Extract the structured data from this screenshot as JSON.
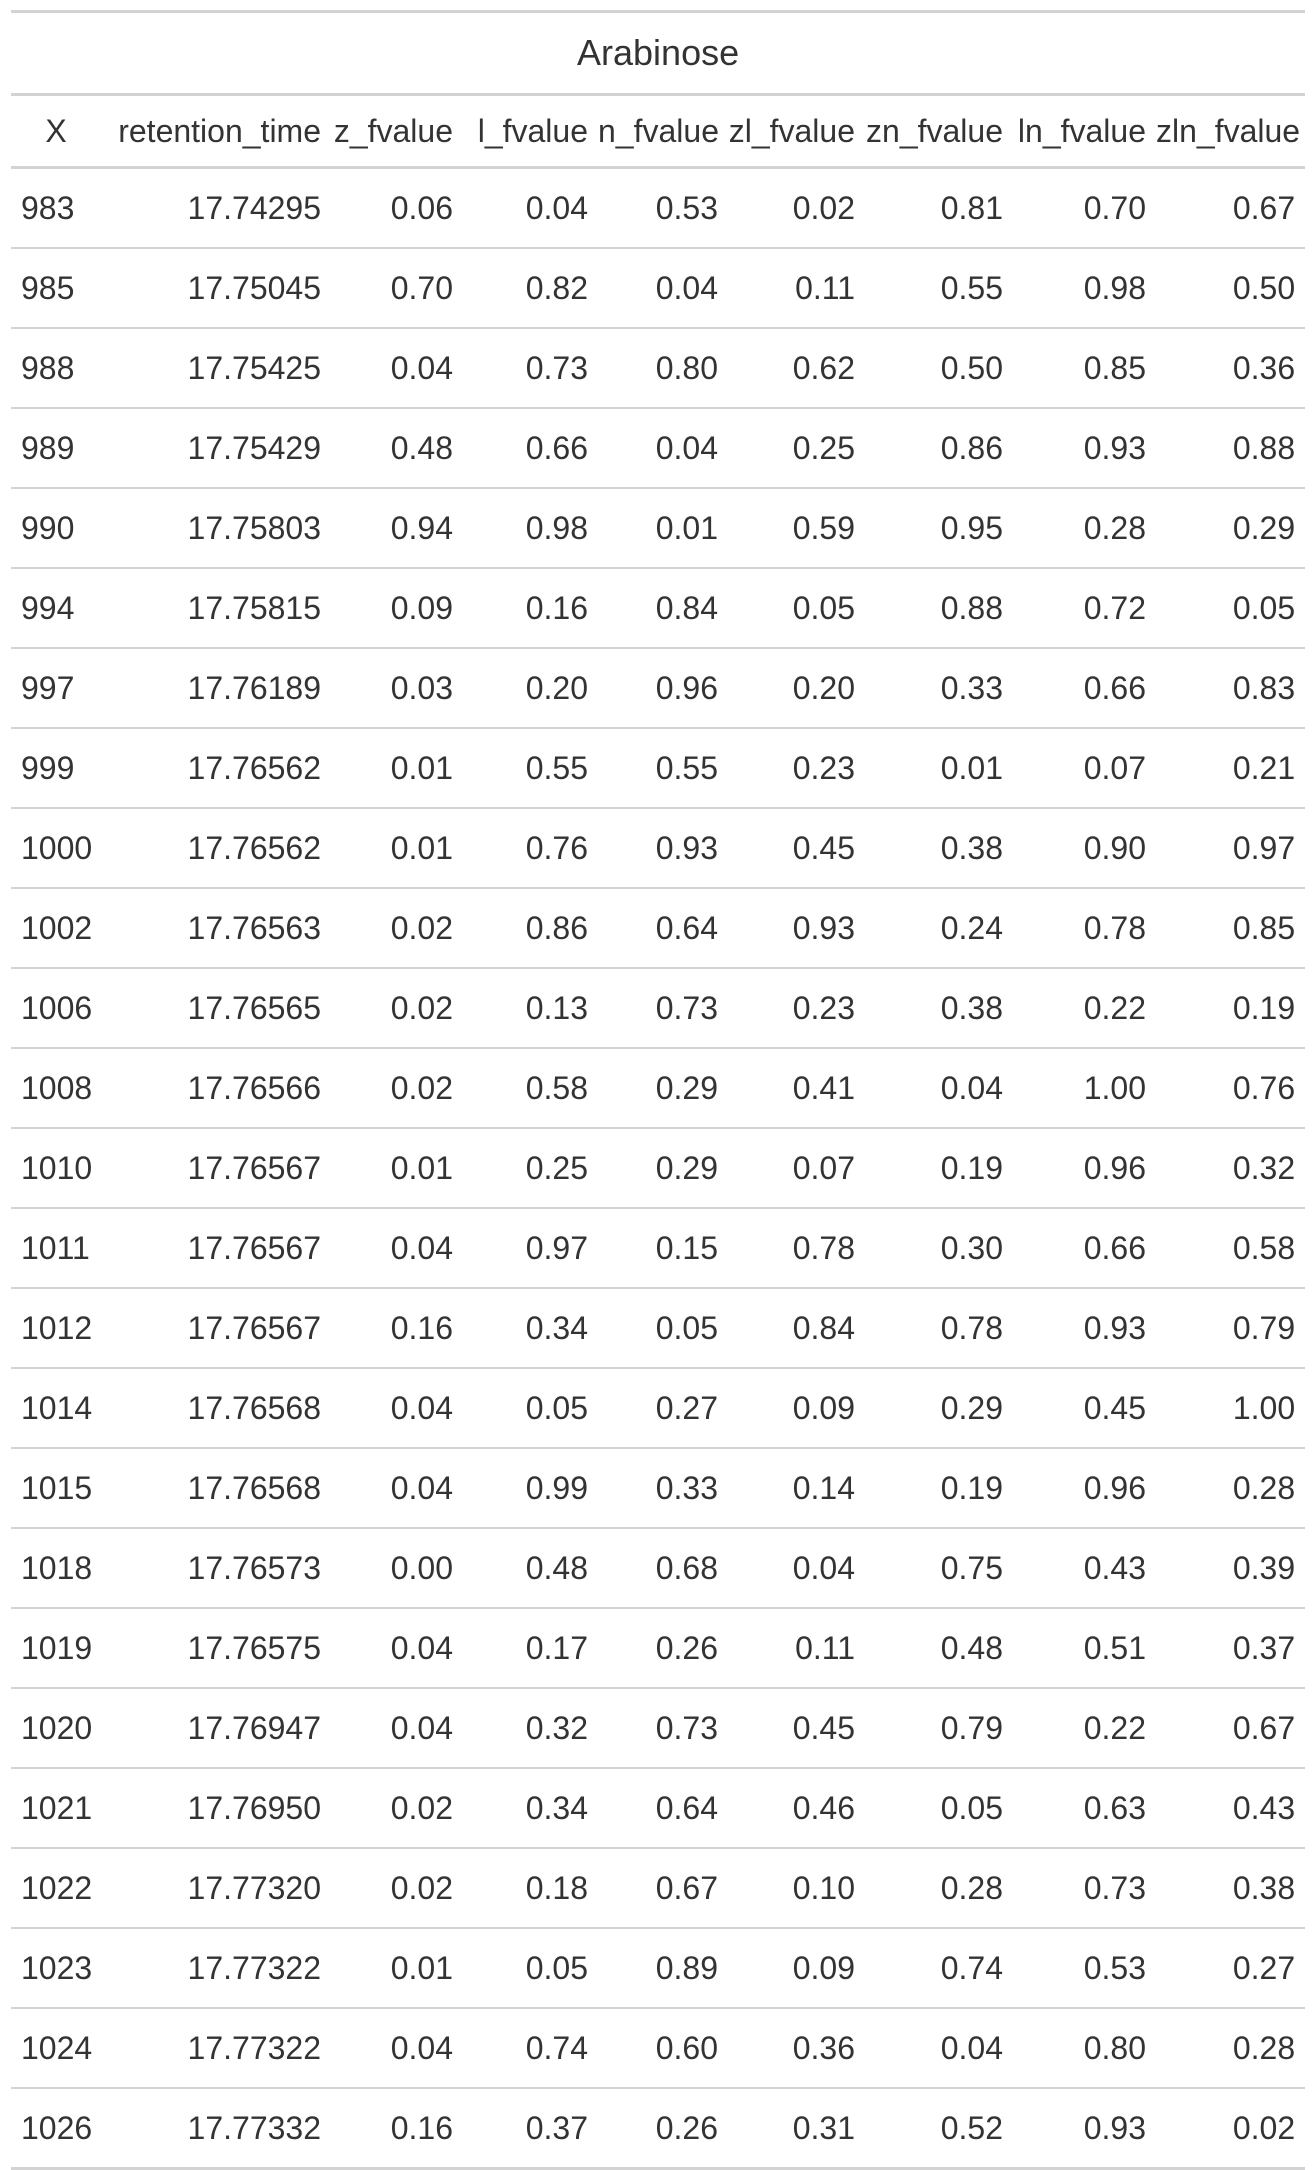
{
  "table": {
    "title": "Arabinose",
    "columns": [
      "X",
      "retention_time",
      "z_fvalue",
      "l_fvalue",
      "n_fvalue",
      "zl_fvalue",
      "zn_fvalue",
      "ln_fvalue",
      "zln_fvalue"
    ],
    "rows": [
      [
        "983",
        "17.74295",
        "0.06",
        "0.04",
        "0.53",
        "0.02",
        "0.81",
        "0.70",
        "0.67"
      ],
      [
        "985",
        "17.75045",
        "0.70",
        "0.82",
        "0.04",
        "0.11",
        "0.55",
        "0.98",
        "0.50"
      ],
      [
        "988",
        "17.75425",
        "0.04",
        "0.73",
        "0.80",
        "0.62",
        "0.50",
        "0.85",
        "0.36"
      ],
      [
        "989",
        "17.75429",
        "0.48",
        "0.66",
        "0.04",
        "0.25",
        "0.86",
        "0.93",
        "0.88"
      ],
      [
        "990",
        "17.75803",
        "0.94",
        "0.98",
        "0.01",
        "0.59",
        "0.95",
        "0.28",
        "0.29"
      ],
      [
        "994",
        "17.75815",
        "0.09",
        "0.16",
        "0.84",
        "0.05",
        "0.88",
        "0.72",
        "0.05"
      ],
      [
        "997",
        "17.76189",
        "0.03",
        "0.20",
        "0.96",
        "0.20",
        "0.33",
        "0.66",
        "0.83"
      ],
      [
        "999",
        "17.76562",
        "0.01",
        "0.55",
        "0.55",
        "0.23",
        "0.01",
        "0.07",
        "0.21"
      ],
      [
        "1000",
        "17.76562",
        "0.01",
        "0.76",
        "0.93",
        "0.45",
        "0.38",
        "0.90",
        "0.97"
      ],
      [
        "1002",
        "17.76563",
        "0.02",
        "0.86",
        "0.64",
        "0.93",
        "0.24",
        "0.78",
        "0.85"
      ],
      [
        "1006",
        "17.76565",
        "0.02",
        "0.13",
        "0.73",
        "0.23",
        "0.38",
        "0.22",
        "0.19"
      ],
      [
        "1008",
        "17.76566",
        "0.02",
        "0.58",
        "0.29",
        "0.41",
        "0.04",
        "1.00",
        "0.76"
      ],
      [
        "1010",
        "17.76567",
        "0.01",
        "0.25",
        "0.29",
        "0.07",
        "0.19",
        "0.96",
        "0.32"
      ],
      [
        "1011",
        "17.76567",
        "0.04",
        "0.97",
        "0.15",
        "0.78",
        "0.30",
        "0.66",
        "0.58"
      ],
      [
        "1012",
        "17.76567",
        "0.16",
        "0.34",
        "0.05",
        "0.84",
        "0.78",
        "0.93",
        "0.79"
      ],
      [
        "1014",
        "17.76568",
        "0.04",
        "0.05",
        "0.27",
        "0.09",
        "0.29",
        "0.45",
        "1.00"
      ],
      [
        "1015",
        "17.76568",
        "0.04",
        "0.99",
        "0.33",
        "0.14",
        "0.19",
        "0.96",
        "0.28"
      ],
      [
        "1018",
        "17.76573",
        "0.00",
        "0.48",
        "0.68",
        "0.04",
        "0.75",
        "0.43",
        "0.39"
      ],
      [
        "1019",
        "17.76575",
        "0.04",
        "0.17",
        "0.26",
        "0.11",
        "0.48",
        "0.51",
        "0.37"
      ],
      [
        "1020",
        "17.76947",
        "0.04",
        "0.32",
        "0.73",
        "0.45",
        "0.79",
        "0.22",
        "0.67"
      ],
      [
        "1021",
        "17.76950",
        "0.02",
        "0.34",
        "0.64",
        "0.46",
        "0.05",
        "0.63",
        "0.43"
      ],
      [
        "1022",
        "17.77320",
        "0.02",
        "0.18",
        "0.67",
        "0.10",
        "0.28",
        "0.73",
        "0.38"
      ],
      [
        "1023",
        "17.77322",
        "0.01",
        "0.05",
        "0.89",
        "0.09",
        "0.74",
        "0.53",
        "0.27"
      ],
      [
        "1024",
        "17.77322",
        "0.04",
        "0.74",
        "0.60",
        "0.36",
        "0.04",
        "0.80",
        "0.28"
      ],
      [
        "1026",
        "17.77332",
        "0.16",
        "0.37",
        "0.26",
        "0.31",
        "0.52",
        "0.93",
        "0.02"
      ]
    ]
  },
  "colors": {
    "text": "#333333",
    "rule": "#d3d3d3",
    "background": "#ffffff"
  }
}
